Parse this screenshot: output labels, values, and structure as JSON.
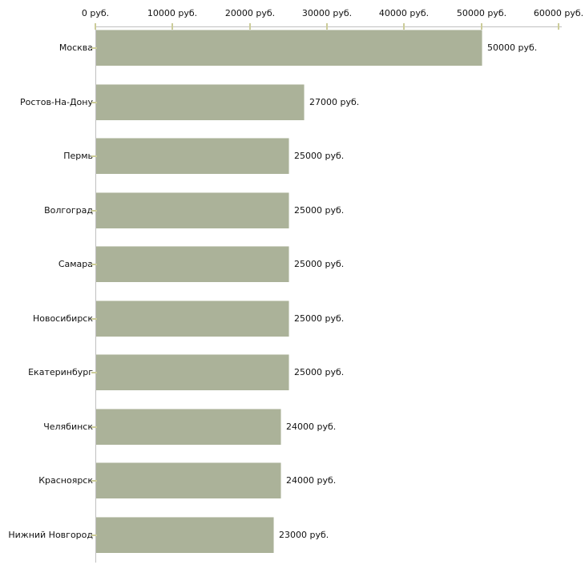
{
  "chart_data": {
    "type": "bar",
    "orientation": "horizontal",
    "title": "",
    "xlabel": "",
    "ylabel": "",
    "grid": false,
    "legend": false,
    "unit_suffix": " руб.",
    "categories": [
      "Москва",
      "Ростов-На-Дону",
      "Пермь",
      "Волгоград",
      "Самара",
      "Новосибирск",
      "Екатеринбург",
      "Челябинск",
      "Красноярск",
      "Нижний Новгород"
    ],
    "values": [
      50000,
      27000,
      25000,
      25000,
      25000,
      25000,
      25000,
      24000,
      24000,
      23000
    ],
    "bar_labels": [
      "50000 руб.",
      "27000 руб.",
      "25000 руб.",
      "25000 руб.",
      "25000 руб.",
      "25000 руб.",
      "25000 руб.",
      "24000 руб.",
      "24000 руб.",
      "23000 руб."
    ],
    "x_tick_values": [
      0,
      10000,
      20000,
      30000,
      40000,
      50000,
      60000
    ],
    "x_tick_labels": [
      "0 руб.",
      "10000 руб.",
      "20000 руб.",
      "30000 руб.",
      "40000 руб.",
      "50000 руб.",
      "60000 руб."
    ],
    "xlim": [
      0,
      60000
    ],
    "colors": {
      "bar_fill": "#abb299",
      "axis_line": "#c0c0c0",
      "tick_mark": "#cccc99",
      "text": "#111111",
      "background": "#ffffff"
    }
  }
}
